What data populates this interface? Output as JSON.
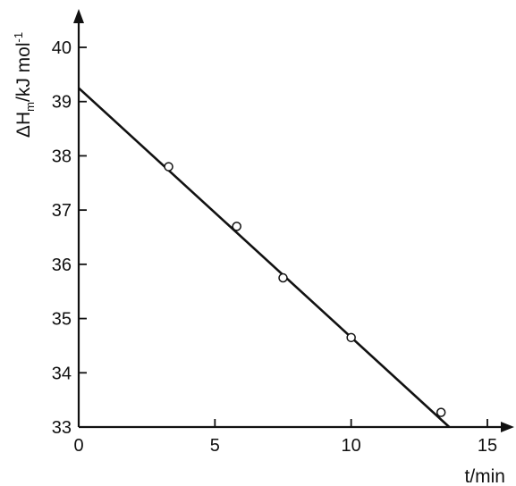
{
  "chart_data": {
    "type": "scatter",
    "title": "",
    "xlabel": "t/min",
    "ylabel": {
      "main": "ΔH",
      "subscript": "m",
      "unit": "/kJ mol",
      "superscript": "-1"
    },
    "xlim": [
      0,
      15
    ],
    "ylim": [
      33,
      40
    ],
    "x_ticks": [
      0,
      5,
      10,
      15
    ],
    "y_ticks": [
      33,
      34,
      35,
      36,
      37,
      38,
      39,
      40
    ],
    "grid": false,
    "legend": "none",
    "points": [
      {
        "x": 3.3,
        "y": 37.8
      },
      {
        "x": 5.8,
        "y": 36.7
      },
      {
        "x": 7.5,
        "y": 35.75
      },
      {
        "x": 10.0,
        "y": 34.65
      },
      {
        "x": 13.3,
        "y": 33.27
      }
    ],
    "fit_line": {
      "x": [
        0,
        13.6
      ],
      "y": [
        39.25,
        33.0
      ]
    },
    "colors": {
      "ink": "#111111",
      "marker_fill": "#ffffff"
    }
  }
}
